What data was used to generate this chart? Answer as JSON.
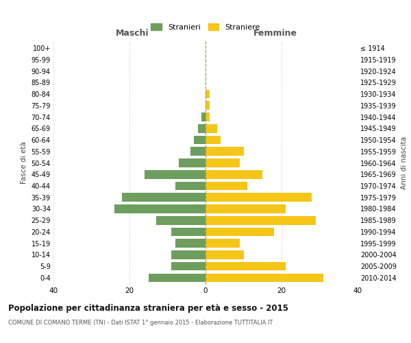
{
  "age_groups": [
    "0-4",
    "5-9",
    "10-14",
    "15-19",
    "20-24",
    "25-29",
    "30-34",
    "35-39",
    "40-44",
    "45-49",
    "50-54",
    "55-59",
    "60-64",
    "65-69",
    "70-74",
    "75-79",
    "80-84",
    "85-89",
    "90-94",
    "95-99",
    "100+"
  ],
  "birth_years": [
    "2010-2014",
    "2005-2009",
    "2000-2004",
    "1995-1999",
    "1990-1994",
    "1985-1989",
    "1980-1984",
    "1975-1979",
    "1970-1974",
    "1965-1969",
    "1960-1964",
    "1955-1959",
    "1950-1954",
    "1945-1949",
    "1940-1944",
    "1935-1939",
    "1930-1934",
    "1925-1929",
    "1920-1924",
    "1915-1919",
    "≤ 1914"
  ],
  "maschi": [
    15,
    9,
    9,
    8,
    9,
    13,
    24,
    22,
    8,
    16,
    7,
    4,
    3,
    2,
    1,
    0,
    0,
    0,
    0,
    0,
    0
  ],
  "femmine": [
    31,
    21,
    10,
    9,
    18,
    29,
    21,
    28,
    11,
    15,
    9,
    10,
    4,
    3,
    1,
    1,
    1,
    0,
    0,
    0,
    0
  ],
  "color_maschi": "#6d9e5e",
  "color_femmine": "#f5c518",
  "title": "Popolazione per cittadinanza straniera per età e sesso - 2015",
  "subtitle": "COMUNE DI COMANO TERME (TN) - Dati ISTAT 1° gennaio 2015 - Elaborazione TUTTITALIA.IT",
  "xlabel_left": "Maschi",
  "xlabel_right": "Femmine",
  "ylabel": "Fasce di età",
  "ylabel_right": "Anni di nascita",
  "xlim": 40,
  "legend_stranieri": "Stranieri",
  "legend_straniere": "Straniere",
  "background_color": "#ffffff",
  "grid_color": "#cccccc"
}
